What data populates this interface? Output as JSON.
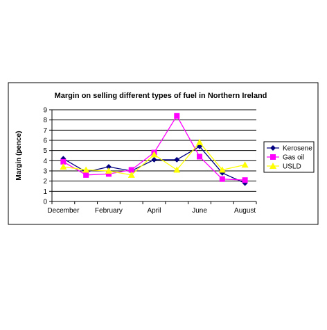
{
  "chart_data": {
    "type": "line",
    "title": "Margin on selling different types of fuel in Northern Ireland",
    "ylabel": "Margin (pence)",
    "xlabel": "",
    "ylim": [
      0,
      9
    ],
    "yticks": [
      0,
      1,
      2,
      3,
      4,
      5,
      6,
      7,
      8,
      9
    ],
    "grid": true,
    "legend_position": "right",
    "x_tick_labels": [
      "December",
      "February",
      "April",
      "June",
      "August"
    ],
    "x_tick_label_indices": [
      0,
      2,
      4,
      6,
      8
    ],
    "point_count": 9,
    "series": [
      {
        "name": "Kerosene",
        "color": "#000080",
        "marker": "diamond",
        "values": [
          4.2,
          2.9,
          3.4,
          3.0,
          4.1,
          4.1,
          5.4,
          2.8,
          1.8
        ]
      },
      {
        "name": "Gas oil",
        "color": "#ff00ff",
        "marker": "square",
        "values": [
          3.9,
          2.6,
          2.7,
          3.1,
          4.8,
          8.4,
          4.4,
          2.2,
          2.1
        ]
      },
      {
        "name": "USLD",
        "color": "#ffff00",
        "marker": "triangle",
        "values": [
          3.4,
          3.1,
          3.0,
          2.6,
          4.6,
          3.1,
          5.8,
          3.1,
          3.6
        ]
      }
    ]
  }
}
